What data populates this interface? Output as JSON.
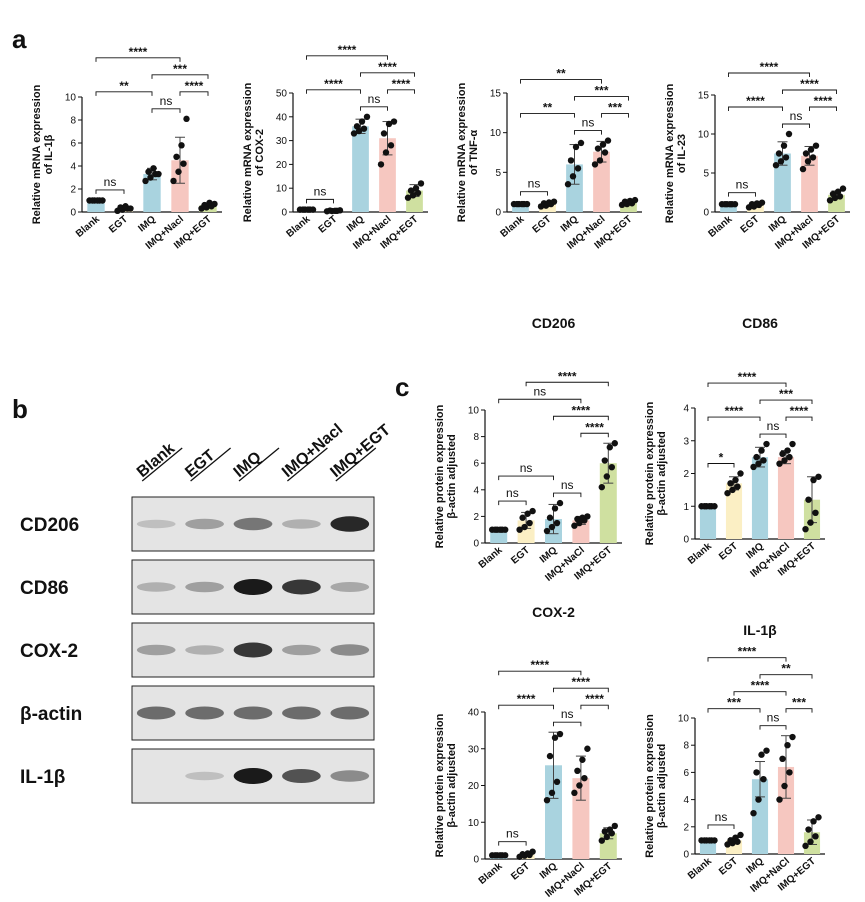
{
  "panels": [
    {
      "letter": "a"
    },
    {
      "letter": "b"
    },
    {
      "letter": "c"
    }
  ],
  "blot": {
    "lanes": [
      "Blank",
      "EGT",
      "IMQ",
      "IMQ+Nacl",
      "IMQ+EGT"
    ],
    "rows": [
      {
        "label": "CD206",
        "intensity": [
          0.25,
          0.45,
          0.65,
          0.35,
          0.95
        ]
      },
      {
        "label": "CD86",
        "intensity": [
          0.35,
          0.45,
          1.0,
          0.9,
          0.4
        ]
      },
      {
        "label": "COX-2",
        "intensity": [
          0.45,
          0.35,
          0.9,
          0.45,
          0.55
        ]
      },
      {
        "label": "β-actin",
        "intensity": [
          0.7,
          0.7,
          0.7,
          0.7,
          0.7
        ]
      },
      {
        "label": "IL-1β",
        "intensity": [
          0.0,
          0.25,
          1.0,
          0.8,
          0.55
        ]
      }
    ]
  },
  "chart_data": [
    {
      "type": "bar",
      "title": "",
      "ylabel": [
        "Relative mRNA expression",
        "of IL-1β"
      ],
      "categories": [
        "Blank",
        "EGT",
        "IMQ",
        "IMQ+Nacl",
        "IMQ+EGT"
      ],
      "values": [
        1.0,
        0.3,
        3.3,
        4.5,
        0.6
      ],
      "errors": [
        0.05,
        0.2,
        0.5,
        2.0,
        0.2
      ],
      "points": [
        [
          1,
          1,
          1,
          1,
          1,
          1
        ],
        [
          0.1,
          0.2,
          0.3,
          0.4,
          0.5,
          0.3
        ],
        [
          2.7,
          3.0,
          3.3,
          3.5,
          3.8,
          3.3
        ],
        [
          2.7,
          3.5,
          4.2,
          4.8,
          5.8,
          8.1
        ],
        [
          0.3,
          0.4,
          0.5,
          0.6,
          0.8,
          0.7
        ]
      ],
      "ylim": [
        0,
        10
      ],
      "yticks": [
        0,
        2,
        4,
        6,
        8,
        10
      ],
      "comparisons": [
        {
          "from": 0,
          "to": 1,
          "label": "ns"
        },
        {
          "from": 0,
          "to": 2,
          "label": "**"
        },
        {
          "from": 0,
          "to": 3,
          "label": "****"
        },
        {
          "from": 2,
          "to": 3,
          "label": "ns"
        },
        {
          "from": 3,
          "to": 4,
          "label": "****"
        },
        {
          "from": 2,
          "to": 4,
          "label": "***"
        }
      ]
    },
    {
      "type": "bar",
      "title": "",
      "ylabel": [
        "Relative mRNA expression",
        "of COX-2"
      ],
      "categories": [
        "Blank",
        "EGT",
        "IMQ",
        "IMQ+Nacl",
        "IMQ+EGT"
      ],
      "values": [
        1.0,
        0.5,
        36.0,
        31.0,
        9.0
      ],
      "errors": [
        0.1,
        0.2,
        3.0,
        7.0,
        2.5
      ],
      "points": [
        [
          1,
          1,
          1,
          1,
          1,
          1
        ],
        [
          0.3,
          0.4,
          0.5,
          0.6,
          0.5,
          0.7
        ],
        [
          33,
          34,
          35,
          36,
          38,
          40
        ],
        [
          20,
          25,
          28,
          33,
          37,
          38
        ],
        [
          6,
          7,
          8,
          9,
          10,
          12
        ]
      ],
      "ylim": [
        0,
        50
      ],
      "yticks": [
        0,
        10,
        20,
        30,
        40,
        50
      ],
      "comparisons": [
        {
          "from": 0,
          "to": 1,
          "label": "ns"
        },
        {
          "from": 2,
          "to": 3,
          "label": "ns"
        },
        {
          "from": 0,
          "to": 2,
          "label": "****"
        },
        {
          "from": 3,
          "to": 4,
          "label": "****"
        },
        {
          "from": 2,
          "to": 4,
          "label": "****"
        },
        {
          "from": 0,
          "to": 3,
          "label": "****"
        }
      ]
    },
    {
      "type": "bar",
      "title": "",
      "ylabel": [
        "Relative mRNA expression",
        "of TNF-α"
      ],
      "categories": [
        "Blank",
        "EGT",
        "IMQ",
        "IMQ+Nacl",
        "IMQ+EGT"
      ],
      "values": [
        1.0,
        1.0,
        6.0,
        7.6,
        1.2
      ],
      "errors": [
        0.05,
        0.3,
        2.5,
        1.3,
        0.3
      ],
      "points": [
        [
          1,
          1,
          1,
          1,
          1,
          1
        ],
        [
          0.7,
          0.8,
          1.0,
          1.1,
          1.2,
          1.3
        ],
        [
          3.5,
          4.5,
          5.5,
          6.5,
          8.2,
          8.7
        ],
        [
          6,
          6.5,
          7.5,
          8,
          8.5,
          9
        ],
        [
          0.9,
          1.0,
          1.1,
          1.3,
          1.4,
          1.5
        ]
      ],
      "ylim": [
        0,
        15
      ],
      "yticks": [
        0,
        5,
        10,
        15
      ],
      "comparisons": [
        {
          "from": 0,
          "to": 1,
          "label": "ns"
        },
        {
          "from": 0,
          "to": 2,
          "label": "**"
        },
        {
          "from": 2,
          "to": 3,
          "label": "ns"
        },
        {
          "from": 3,
          "to": 4,
          "label": "***"
        },
        {
          "from": 0,
          "to": 3,
          "label": "**"
        },
        {
          "from": 2,
          "to": 4,
          "label": "***"
        }
      ]
    },
    {
      "type": "bar",
      "title": "",
      "ylabel": [
        "Relative mRNA expression",
        "of IL-23"
      ],
      "categories": [
        "Blank",
        "EGT",
        "IMQ",
        "IMQ+Nacl",
        "IMQ+EGT"
      ],
      "values": [
        1.0,
        0.9,
        7.5,
        7.2,
        2.2
      ],
      "errors": [
        0.05,
        0.3,
        1.5,
        1.2,
        0.5
      ],
      "points": [
        [
          1,
          1,
          1,
          1,
          1,
          1
        ],
        [
          0.6,
          0.7,
          0.9,
          1.0,
          1.1,
          1.2
        ],
        [
          6,
          6.5,
          7,
          7.5,
          8.5,
          10
        ],
        [
          5.5,
          6.5,
          7,
          7.5,
          8,
          8.5
        ],
        [
          1.5,
          1.8,
          2,
          2.3,
          2.6,
          3
        ]
      ],
      "ylim": [
        0,
        15
      ],
      "yticks": [
        0,
        5,
        10,
        15
      ],
      "comparisons": [
        {
          "from": 0,
          "to": 1,
          "label": "ns"
        },
        {
          "from": 0,
          "to": 2,
          "label": "****"
        },
        {
          "from": 2,
          "to": 3,
          "label": "ns"
        },
        {
          "from": 3,
          "to": 4,
          "label": "****"
        },
        {
          "from": 0,
          "to": 3,
          "label": "****"
        },
        {
          "from": 2,
          "to": 4,
          "label": "****"
        }
      ]
    },
    {
      "type": "bar",
      "title": "CD206",
      "ylabel": [
        "Relative protein expression",
        "β-actin adjusted"
      ],
      "categories": [
        "Blank",
        "EGT",
        "IMQ",
        "IMQ+NaCl",
        "IMQ+EGT"
      ],
      "values": [
        1.0,
        1.7,
        1.8,
        1.7,
        6.0
      ],
      "errors": [
        0.05,
        0.6,
        1.1,
        0.3,
        1.5
      ],
      "points": [
        [
          1,
          1,
          1,
          1,
          1,
          1
        ],
        [
          1.0,
          1.2,
          1.5,
          1.9,
          2.2,
          2.4
        ],
        [
          0.9,
          1.2,
          1.5,
          1.9,
          2.6,
          3.0
        ],
        [
          1.3,
          1.5,
          1.7,
          1.8,
          1.9,
          2.0
        ],
        [
          4.2,
          5.0,
          5.7,
          6.2,
          7.2,
          7.5
        ]
      ],
      "ylim": [
        0,
        10
      ],
      "yticks": [
        0,
        2,
        4,
        6,
        8,
        10
      ],
      "comparisons": [
        {
          "from": 0,
          "to": 1,
          "label": "ns"
        },
        {
          "from": 2,
          "to": 3,
          "label": "ns"
        },
        {
          "from": 0,
          "to": 2,
          "label": "ns"
        },
        {
          "from": 3,
          "to": 4,
          "label": "****"
        },
        {
          "from": 2,
          "to": 4,
          "label": "****"
        },
        {
          "from": 0,
          "to": 3,
          "label": "ns"
        },
        {
          "from": 1,
          "to": 4,
          "label": "****"
        }
      ]
    },
    {
      "type": "bar",
      "title": "CD86",
      "ylabel": [
        "Relative protein expression",
        "β-actin adjusted"
      ],
      "categories": [
        "Blank",
        "EGT",
        "IMQ",
        "IMQ+NaCl",
        "IMQ+EGT"
      ],
      "values": [
        1.0,
        1.7,
        2.5,
        2.5,
        1.2
      ],
      "errors": [
        0.03,
        0.2,
        0.3,
        0.2,
        0.7
      ],
      "points": [
        [
          1,
          1,
          1,
          1,
          1,
          1
        ],
        [
          1.4,
          1.5,
          1.6,
          1.7,
          1.8,
          2.0
        ],
        [
          2.2,
          2.3,
          2.4,
          2.5,
          2.7,
          2.9
        ],
        [
          2.3,
          2.4,
          2.5,
          2.6,
          2.7,
          2.9
        ],
        [
          0.3,
          0.5,
          0.8,
          1.2,
          1.8,
          1.9
        ]
      ],
      "ylim": [
        0,
        4
      ],
      "yticks": [
        0,
        1,
        2,
        3,
        4
      ],
      "comparisons": [
        {
          "from": 0,
          "to": 1,
          "label": "*"
        },
        {
          "from": 2,
          "to": 3,
          "label": "ns"
        },
        {
          "from": 3,
          "to": 4,
          "label": "****"
        },
        {
          "from": 0,
          "to": 2,
          "label": "****"
        },
        {
          "from": 2,
          "to": 4,
          "label": "***"
        },
        {
          "from": 0,
          "to": 3,
          "label": "****"
        }
      ]
    },
    {
      "type": "bar",
      "title": "COX-2",
      "ylabel": [
        "Relative protein expression",
        "β-actin adjusted"
      ],
      "categories": [
        "Blank",
        "EGT",
        "IMQ",
        "IMQ+NaCl",
        "IMQ+EGT"
      ],
      "values": [
        1.0,
        1.2,
        25.5,
        22.0,
        7.0
      ],
      "errors": [
        0.05,
        0.5,
        9.0,
        6.0,
        1.5
      ],
      "points": [
        [
          1,
          1,
          1,
          1,
          1,
          1
        ],
        [
          0.6,
          0.9,
          1.1,
          1.3,
          1.5,
          2.0
        ],
        [
          16,
          18,
          21,
          28,
          33,
          34
        ],
        [
          18,
          20,
          22,
          24,
          27,
          30
        ],
        [
          5,
          6,
          7,
          7.5,
          8,
          9
        ]
      ],
      "ylim": [
        0,
        40
      ],
      "yticks": [
        0,
        10,
        20,
        30,
        40
      ],
      "comparisons": [
        {
          "from": 0,
          "to": 1,
          "label": "ns"
        },
        {
          "from": 0,
          "to": 2,
          "label": "****"
        },
        {
          "from": 2,
          "to": 3,
          "label": "ns"
        },
        {
          "from": 3,
          "to": 4,
          "label": "****"
        },
        {
          "from": 0,
          "to": 3,
          "label": "****"
        },
        {
          "from": 2,
          "to": 4,
          "label": "****"
        }
      ]
    },
    {
      "type": "bar",
      "title": "IL-1β",
      "ylabel": [
        "Relative protein expression",
        "β-actin adjusted"
      ],
      "categories": [
        "Blank",
        "EGT",
        "IMQ",
        "IMQ+NaCl",
        "IMQ+EGT"
      ],
      "values": [
        1.0,
        1.0,
        5.5,
        6.4,
        1.6
      ],
      "errors": [
        0.05,
        0.2,
        1.3,
        2.3,
        0.9
      ],
      "points": [
        [
          1,
          1,
          1,
          1,
          1,
          1
        ],
        [
          0.7,
          0.8,
          0.9,
          1.0,
          1.2,
          1.4
        ],
        [
          3.0,
          4.0,
          5.5,
          6.0,
          7.3,
          7.6
        ],
        [
          4.0,
          5.0,
          6.0,
          7.0,
          8.0,
          8.6
        ],
        [
          0.6,
          0.9,
          1.3,
          1.8,
          2.4,
          2.7
        ]
      ],
      "ylim": [
        0,
        10
      ],
      "yticks": [
        0,
        2,
        4,
        6,
        8,
        10
      ],
      "comparisons": [
        {
          "from": 0,
          "to": 1,
          "label": "ns"
        },
        {
          "from": 2,
          "to": 3,
          "label": "ns"
        },
        {
          "from": 3,
          "to": 4,
          "label": "***"
        },
        {
          "from": 0,
          "to": 2,
          "label": "***"
        },
        {
          "from": 2,
          "to": 4,
          "label": "**"
        },
        {
          "from": 0,
          "to": 3,
          "label": "****"
        },
        {
          "from": 1,
          "to": 3,
          "label": "****"
        }
      ]
    }
  ],
  "colors": {
    "bars": [
      "#a9d3df",
      "#fbefc4",
      "#a9d3df",
      "#f6c7c0",
      "#cfe0a0"
    ],
    "points": "#111111",
    "axis": "#111111"
  }
}
